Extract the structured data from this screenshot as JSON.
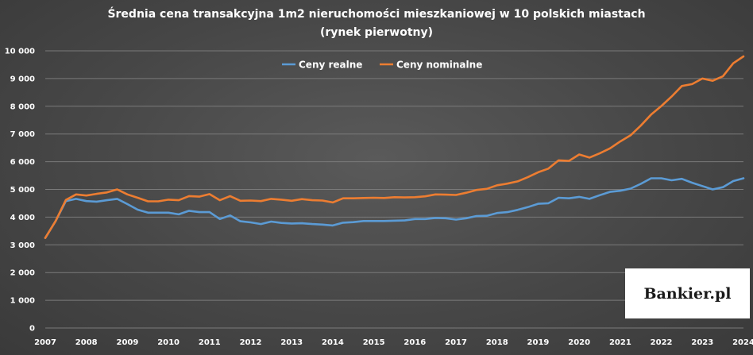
{
  "chart_data": {
    "type": "line",
    "title": "Średnia cena transakcyjna  1m2 nieruchomości mieszkaniowej w 10 polskich miastach",
    "subtitle": "(rynek pierwotny)",
    "xlabel": "",
    "ylabel": "",
    "ylim": [
      0,
      10000
    ],
    "xlim": [
      2007,
      2024
    ],
    "y_ticks": [
      0,
      1000,
      2000,
      3000,
      4000,
      5000,
      6000,
      7000,
      8000,
      9000,
      10000
    ],
    "y_tick_labels": [
      "0",
      "1 000",
      "2 000",
      "3 000",
      "4 000",
      "5 000",
      "6 000",
      "7 000",
      "8 000",
      "9 000",
      "10 000"
    ],
    "x_ticks": [
      2007,
      2008,
      2009,
      2010,
      2011,
      2012,
      2013,
      2014,
      2015,
      2016,
      2017,
      2018,
      2019,
      2020,
      2021,
      2022,
      2023,
      2024
    ],
    "x_tick_labels": [
      "2007",
      "2008",
      "2009",
      "2010",
      "2011",
      "2012",
      "2013",
      "2014",
      "2015",
      "2016",
      "2017",
      "2018",
      "2019",
      "2020",
      "2021",
      "2022",
      "2023",
      "2024"
    ],
    "grid": true,
    "legend_position": "top-center",
    "x": [
      2007.0,
      2007.25,
      2007.5,
      2007.75,
      2008.0,
      2008.25,
      2008.5,
      2008.75,
      2009.0,
      2009.25,
      2009.5,
      2009.75,
      2010.0,
      2010.25,
      2010.5,
      2010.75,
      2011.0,
      2011.25,
      2011.5,
      2011.75,
      2012.0,
      2012.25,
      2012.5,
      2012.75,
      2013.0,
      2013.25,
      2013.5,
      2013.75,
      2014.0,
      2014.25,
      2014.5,
      2014.75,
      2015.0,
      2015.25,
      2015.5,
      2015.75,
      2016.0,
      2016.25,
      2016.5,
      2016.75,
      2017.0,
      2017.25,
      2017.5,
      2017.75,
      2018.0,
      2018.25,
      2018.5,
      2018.75,
      2019.0,
      2019.25,
      2019.5,
      2019.75,
      2020.0,
      2020.25,
      2020.5,
      2020.75,
      2021.0,
      2021.25,
      2021.5,
      2021.75,
      2022.0,
      2022.25,
      2022.5,
      2022.75,
      2023.0,
      2023.25,
      2023.5,
      2023.75,
      2024.0
    ],
    "series": [
      {
        "name": "Ceny realne",
        "color": "#5b9bd5",
        "values": [
          3250,
          3850,
          4580,
          4660,
          4580,
          4560,
          4610,
          4660,
          4470,
          4270,
          4160,
          4160,
          4160,
          4100,
          4230,
          4180,
          4180,
          3930,
          4060,
          3850,
          3810,
          3750,
          3840,
          3790,
          3770,
          3780,
          3750,
          3730,
          3700,
          3800,
          3820,
          3860,
          3860,
          3860,
          3870,
          3880,
          3930,
          3930,
          3970,
          3960,
          3910,
          3960,
          4040,
          4050,
          4150,
          4180,
          4260,
          4360,
          4480,
          4500,
          4700,
          4680,
          4730,
          4660,
          4790,
          4910,
          4950,
          5030,
          5200,
          5400,
          5400,
          5330,
          5380,
          5240,
          5120,
          5000,
          5080,
          5300,
          5400
        ]
      },
      {
        "name": "Ceny nominalne",
        "color": "#ed7d31",
        "values": [
          3250,
          3850,
          4620,
          4820,
          4780,
          4840,
          4890,
          5000,
          4820,
          4700,
          4570,
          4570,
          4630,
          4610,
          4760,
          4740,
          4830,
          4610,
          4760,
          4590,
          4600,
          4580,
          4660,
          4630,
          4590,
          4650,
          4610,
          4600,
          4530,
          4680,
          4680,
          4690,
          4700,
          4690,
          4720,
          4710,
          4720,
          4750,
          4820,
          4810,
          4800,
          4880,
          4980,
          5020,
          5150,
          5210,
          5290,
          5440,
          5620,
          5750,
          6050,
          6030,
          6260,
          6150,
          6300,
          6480,
          6730,
          6950,
          7300,
          7700,
          8010,
          8350,
          8730,
          8800,
          9000,
          8920,
          9080,
          9550,
          9800
        ]
      }
    ]
  },
  "logo": {
    "text": "Bankier.pl"
  }
}
